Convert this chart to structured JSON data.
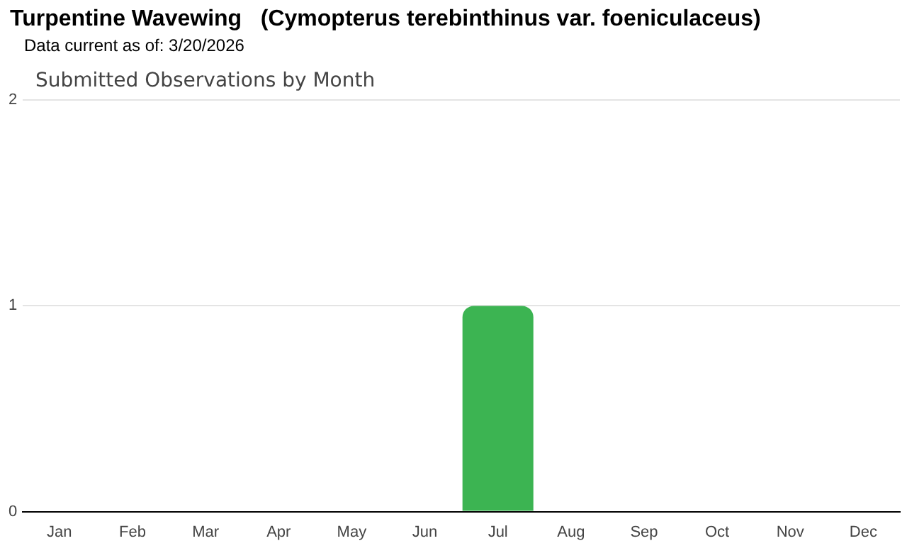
{
  "chart_data": {
    "type": "bar",
    "title": "Turpentine Wavewing   (Cymopterus terebinthinus var. foeniculaceus)",
    "subtitle": "Data current as of: 3/20/2026",
    "annotations": [
      "Submitted Observations by Month"
    ],
    "categories": [
      "Jan",
      "Feb",
      "Mar",
      "Apr",
      "May",
      "Jun",
      "Jul",
      "Aug",
      "Sep",
      "Oct",
      "Nov",
      "Dec"
    ],
    "values": [
      0,
      0,
      0,
      0,
      0,
      0,
      1,
      0,
      0,
      0,
      0,
      0
    ],
    "color": "#3cb452",
    "ylim": [
      0,
      2
    ],
    "yticks": [
      0,
      1,
      2
    ],
    "grid": "y",
    "legend": false
  }
}
